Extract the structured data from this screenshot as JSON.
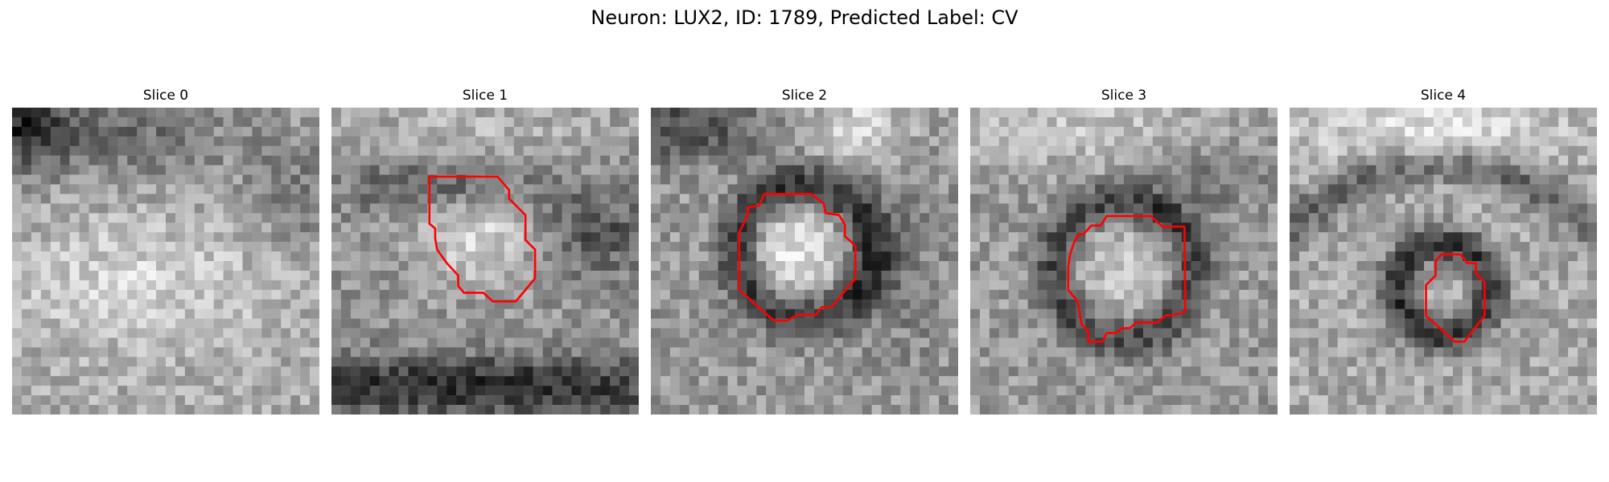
{
  "figure": {
    "suptitle": "Neuron: LUX2, ID: 1789, Predicted Label: CV"
  },
  "panels": [
    {
      "title": "Slice 0",
      "has_contour": false
    },
    {
      "title": "Slice 1",
      "has_contour": true
    },
    {
      "title": "Slice 2",
      "has_contour": true
    },
    {
      "title": "Slice 3",
      "has_contour": true
    },
    {
      "title": "Slice 4",
      "has_contour": true
    }
  ],
  "colors": {
    "contour": "#ff0000",
    "background": "#ffffff"
  }
}
